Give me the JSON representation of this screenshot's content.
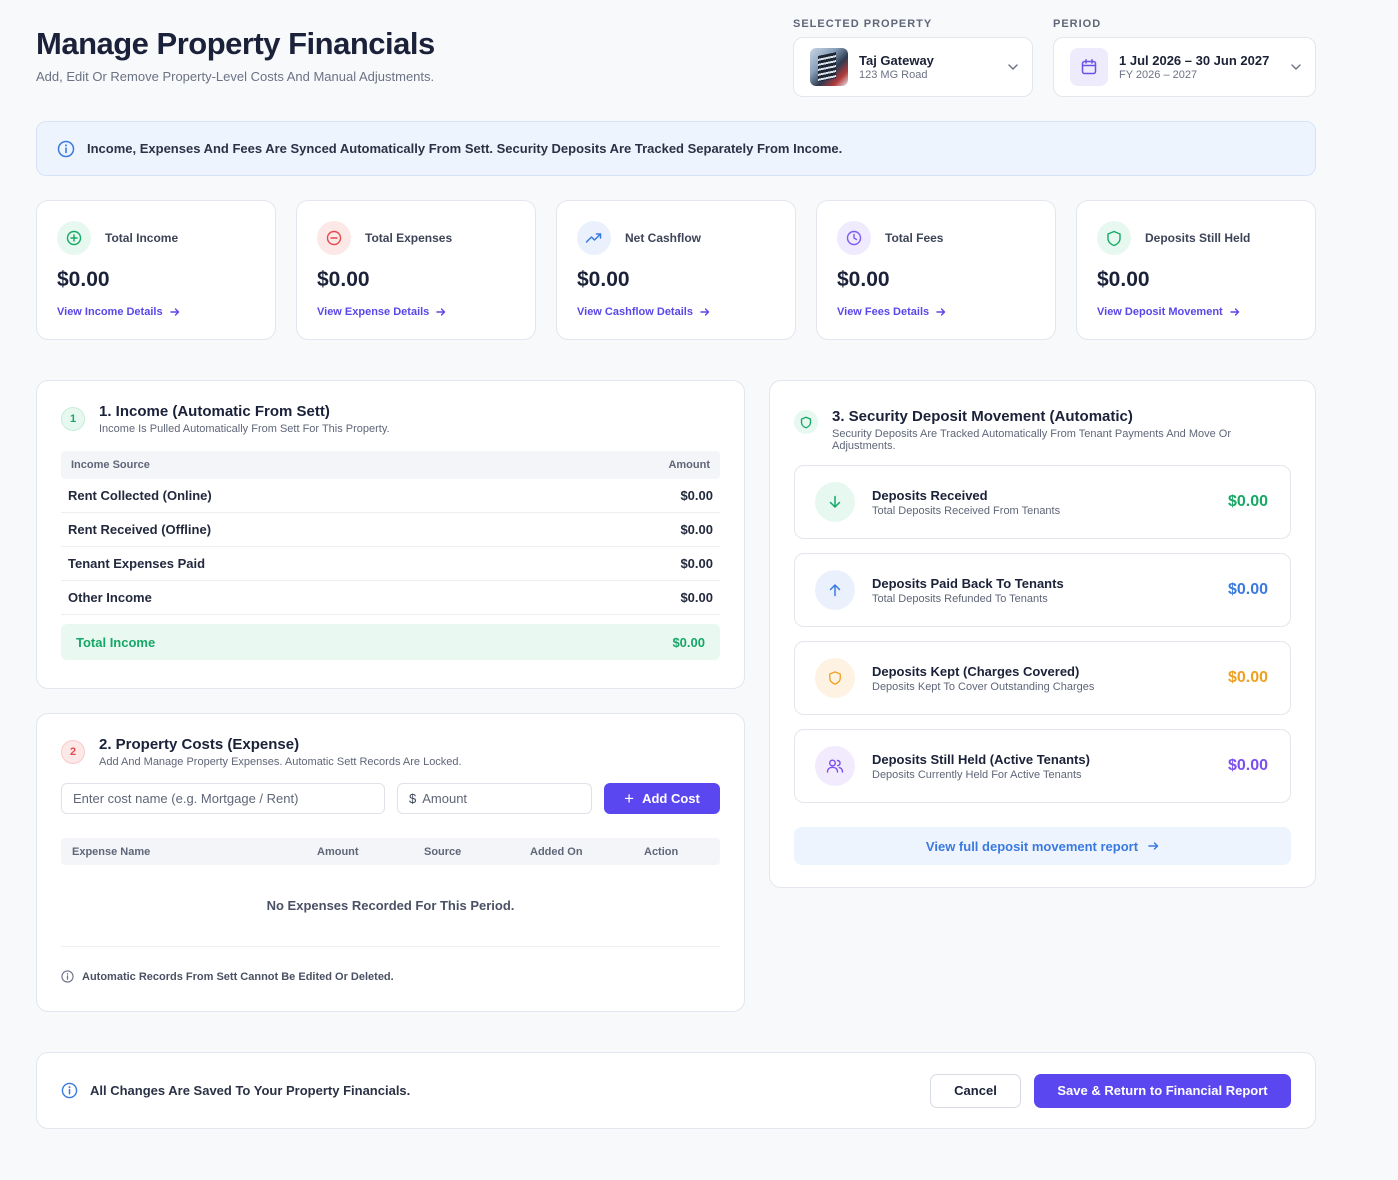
{
  "header": {
    "title": "Manage Property Financials",
    "subtitle": "Add, Edit Or Remove Property-Level Costs And Manual Adjustments."
  },
  "property_selector": {
    "label": "SELECTED PROPERTY",
    "name": "Taj Gateway",
    "address": "123 MG Road"
  },
  "period_selector": {
    "label": "PERIOD",
    "range": "1 Jul 2026 – 30 Jun 2027",
    "fy": "FY 2026 – 2027"
  },
  "banner": {
    "text": "Income, Expenses And Fees Are Synced Automatically From Sett. Security Deposits Are Tracked Separately From Income."
  },
  "kpis": [
    {
      "label": "Total Income",
      "value": "$0.00",
      "link": "View Income Details",
      "icon": "plus-circle-icon",
      "color": "#16a865"
    },
    {
      "label": "Total Expenses",
      "value": "$0.00",
      "link": "View Expense Details",
      "icon": "minus-circle-icon",
      "color": "#e5484d"
    },
    {
      "label": "Net Cashflow",
      "value": "$0.00",
      "link": "View Cashflow Details",
      "icon": "trend-up-icon",
      "color": "#3a7ae0"
    },
    {
      "label": "Total Fees",
      "value": "$0.00",
      "link": "View Fees Details",
      "icon": "clock-icon",
      "color": "#7c5cf0"
    },
    {
      "label": "Deposits Still Held",
      "value": "$0.00",
      "link": "View Deposit Movement",
      "icon": "shield-icon",
      "color": "#16a865"
    }
  ],
  "income": {
    "number": "1",
    "title": "1. Income (Automatic From Sett)",
    "subtitle": "Income Is Pulled Automatically From Sett For This Property.",
    "col_source": "Income Source",
    "col_amount": "Amount",
    "rows": [
      {
        "source": "Rent Collected (Online)",
        "amount": "$0.00"
      },
      {
        "source": "Rent Received (Offline)",
        "amount": "$0.00"
      },
      {
        "source": "Tenant Expenses Paid",
        "amount": "$0.00"
      },
      {
        "source": "Other Income",
        "amount": "$0.00"
      }
    ],
    "total_label": "Total Income",
    "total_value": "$0.00"
  },
  "costs": {
    "number": "2",
    "title": "2. Property Costs (Expense)",
    "subtitle": "Add And Manage Property Expenses. Automatic Sett Records Are Locked.",
    "name_placeholder": "Enter cost name (e.g. Mortgage / Rent)",
    "currency_symbol": "$",
    "amount_placeholder": "Amount",
    "add_label": "Add Cost",
    "columns": [
      "Expense Name",
      "Amount",
      "Source",
      "Added On",
      "Action"
    ],
    "empty_text": "No Expenses Recorded For This Period.",
    "note": "Automatic Records From Sett Cannot Be Edited Or Deleted."
  },
  "deposits": {
    "title": "3. Security Deposit Movement (Automatic)",
    "subtitle": "Security Deposits Are Tracked Automatically From Tenant Payments And Move Or Adjustments.",
    "rows": [
      {
        "title": "Deposits Received",
        "sub": "Total Deposits Received From Tenants",
        "amount": "$0.00",
        "icon": "arrow-down-icon",
        "color": "#16a865"
      },
      {
        "title": "Deposits Paid Back To Tenants",
        "sub": "Total Deposits Refunded To Tenants",
        "amount": "$0.00",
        "icon": "arrow-up-icon",
        "color": "#3a7ae0"
      },
      {
        "title": "Deposits Kept (Charges Covered)",
        "sub": "Deposits Kept To Cover Outstanding Charges",
        "amount": "$0.00",
        "icon": "shield-icon",
        "color": "#f0a020"
      },
      {
        "title": "Deposits Still Held (Active Tenants)",
        "sub": "Deposits Currently Held For Active Tenants",
        "amount": "$0.00",
        "icon": "users-icon",
        "color": "#7c4ff0"
      }
    ],
    "report_link": "View full deposit movement report"
  },
  "footer": {
    "note": "All Changes Are Saved To Your Property Financials.",
    "cancel_label": "Cancel",
    "save_label": "Save & Return to Financial Report"
  }
}
